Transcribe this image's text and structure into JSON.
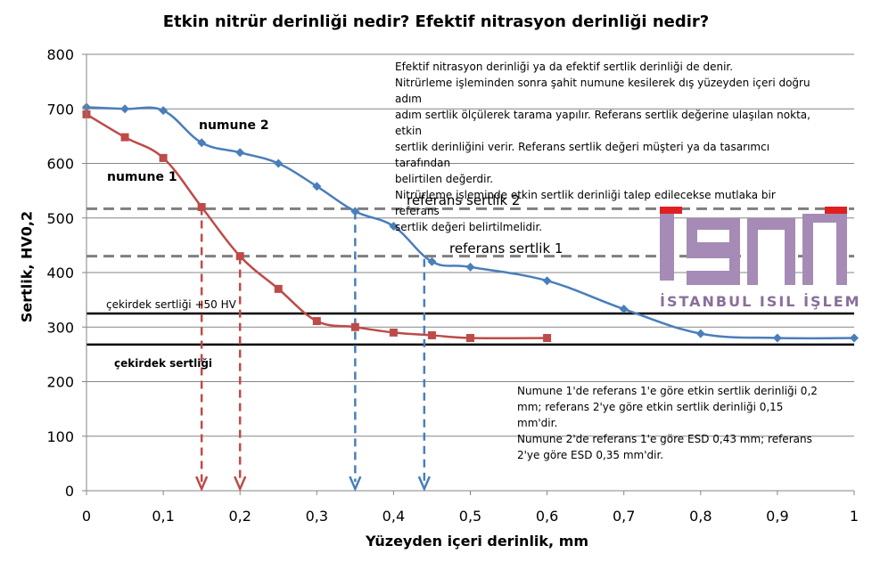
{
  "chart_data": {
    "type": "line",
    "title": "Etkin nitrür derinliği nedir? Efektif nitrasyon derinliği nedir?",
    "xlabel": "Yüzeyden içeri derinlik,  mm",
    "ylabel": "Sertlik, HV0,2",
    "xlim": [
      0,
      1
    ],
    "ylim": [
      0,
      800
    ],
    "x_ticks": [
      "0",
      "0,1",
      "0,2",
      "0,3",
      "0,4",
      "0,5",
      "0,6",
      "0,7",
      "0,8",
      "0,9",
      "1"
    ],
    "y_ticks": [
      "0",
      "100",
      "200",
      "300",
      "400",
      "500",
      "600",
      "700",
      "800"
    ],
    "grid": "horizontal",
    "series": [
      {
        "name": "numune 2",
        "color": "#4a7ebb",
        "marker": "diamond",
        "x": [
          0,
          0.05,
          0.1,
          0.15,
          0.2,
          0.25,
          0.3,
          0.35,
          0.4,
          0.45,
          0.5,
          0.6,
          0.7,
          0.8,
          0.9,
          1.0
        ],
        "y": [
          703,
          700,
          697,
          638,
          620,
          600,
          558,
          512,
          485,
          420,
          410,
          385,
          333,
          288,
          280,
          280
        ]
      },
      {
        "name": "numune 1",
        "color": "#be4b48",
        "marker": "square",
        "x": [
          0,
          0.05,
          0.1,
          0.15,
          0.2,
          0.25,
          0.3,
          0.35,
          0.4,
          0.45,
          0.5,
          0.6
        ],
        "y": [
          690,
          648,
          610,
          520,
          430,
          370,
          311,
          300,
          290,
          285,
          280,
          280
        ]
      }
    ],
    "reference_lines": [
      {
        "label": "referans sertlik 2",
        "y": 517,
        "style": "dashed"
      },
      {
        "label": "referans sertlik 1",
        "y": 430,
        "style": "dashed"
      },
      {
        "label": "çekirdek sertliği +50 HV",
        "y": 325,
        "style": "solid"
      },
      {
        "label": "çekirdek sertliği",
        "y": 268,
        "style": "solid"
      }
    ],
    "arrows": [
      {
        "x": 0.15,
        "from_y": 520,
        "color": "#be4b48"
      },
      {
        "x": 0.2,
        "from_y": 430,
        "color": "#be4b48"
      },
      {
        "x": 0.35,
        "from_y": 512,
        "color": "#4a7ebb"
      },
      {
        "x": 0.44,
        "from_y": 425,
        "color": "#4a7ebb"
      }
    ]
  },
  "notes": {
    "top": [
      "Efektif  nitrasyon  derinliği ya da efektif  sertlik derinliği de denir.",
      "Nitrürleme işleminden sonra şahit numune kesilerek dış yüzeyden içeri doğru adım",
      "adım sertlik ölçülerek tarama yapılır. Referans sertlik değerine ulaşılan nokta, etkin",
      "sertlik derinliğini verir.  Referans sertlik değeri müşteri ya da tasarımcı tarafından",
      "belirtilen değerdir.",
      "Nitrürleme işleminde etkin sertlik derinliği talep edilecekse mutlaka bir referans",
      "sertlik değeri belirtilmelidir."
    ],
    "bottom": [
      "Numune 1'de referans 1'e göre etkin sertlik derinliği 0,2",
      "mm; referans 2'ye göre etkin sertlik derinliği 0,15",
      "mm'dir.",
      "Numune 2'de referans 1'e göre ESD 0,43 mm; referans",
      "2'ye göre ESD 0,35 mm'dir."
    ]
  },
  "logo": {
    "text": "İSTANBUL ISIL İŞLEM",
    "color": "#a58bb5",
    "accent": "#e02020"
  }
}
